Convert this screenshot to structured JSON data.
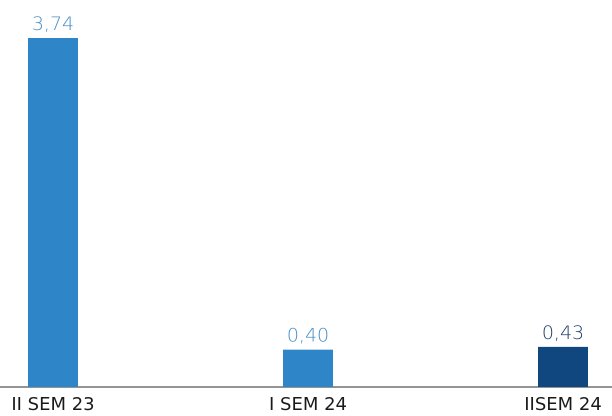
{
  "chart_data": {
    "type": "bar",
    "categories": [
      "II SEM 23",
      "I SEM 24",
      "IISEM 24"
    ],
    "values": [
      3.74,
      0.4,
      0.43
    ],
    "value_labels": [
      "3,74",
      "0,40",
      "0,43"
    ],
    "bar_colors": [
      "#2e86c8",
      "#2e86c8",
      "#11477f"
    ],
    "label_colors": [
      "#4a8fc5",
      "#4a8fc5",
      "#1f3f66"
    ],
    "axis_color": "#2a2a2a",
    "title": "",
    "xlabel": "",
    "ylabel": "",
    "ylim": [
      0,
      3.74
    ],
    "grid": false,
    "legend": "none"
  }
}
